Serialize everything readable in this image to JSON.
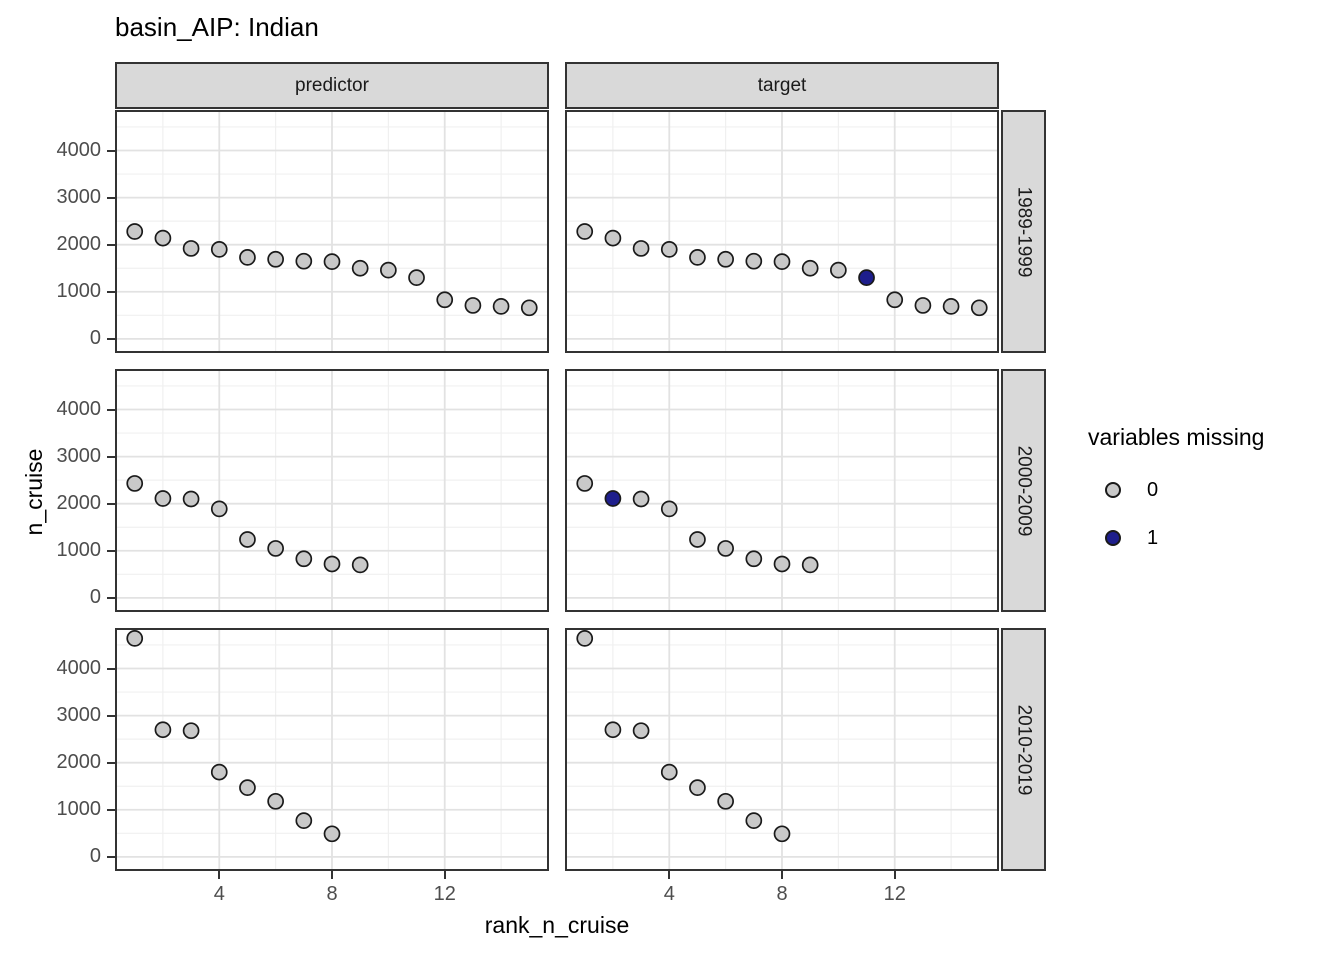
{
  "chart_data": {
    "type": "scatter",
    "title": "basin_AIP: Indian",
    "xlabel": "rank_n_cruise",
    "ylabel": "n_cruise",
    "facet_columns": [
      "predictor",
      "target"
    ],
    "facet_rows": [
      "1989-1999",
      "2000-2009",
      "2010-2019"
    ],
    "x_domain": [
      0.3,
      15.7
    ],
    "y_domain": [
      -300,
      4860
    ],
    "x_ticks": [
      4,
      8,
      12
    ],
    "y_ticks": [
      0,
      1000,
      2000,
      3000,
      4000
    ],
    "x_minor_gridlines": [
      2,
      6,
      10,
      14
    ],
    "y_minor_gridlines": [
      500,
      1500,
      2500,
      3500,
      4500
    ],
    "grid": "on",
    "legend": {
      "title": "variables missing",
      "position": "right",
      "entries": [
        {
          "label": "0",
          "value": 0,
          "color": "#C9C9C9"
        },
        {
          "label": "1",
          "value": 1,
          "color": "#1E1E8C"
        }
      ]
    },
    "style": {
      "point_stroke": "#1A1A1A",
      "point_diameter": 15,
      "grid_major_color": "#E2E2E2",
      "grid_minor_color": "#F0F0F0",
      "strip_fill": "#D9D9D9",
      "panel_border": "#333333",
      "axis_text_color": "#4D4D4D"
    },
    "series": [
      {
        "row": "1989-1999",
        "col": "predictor",
        "points": [
          [
            1,
            2280,
            0
          ],
          [
            2,
            2140,
            0
          ],
          [
            3,
            1920,
            0
          ],
          [
            4,
            1900,
            0
          ],
          [
            5,
            1730,
            0
          ],
          [
            6,
            1690,
            0
          ],
          [
            7,
            1650,
            0
          ],
          [
            8,
            1640,
            0
          ],
          [
            9,
            1500,
            0
          ],
          [
            10,
            1460,
            0
          ],
          [
            11,
            1300,
            0
          ],
          [
            12,
            830,
            0
          ],
          [
            13,
            710,
            0
          ],
          [
            14,
            690,
            0
          ],
          [
            15,
            660,
            0
          ]
        ]
      },
      {
        "row": "1989-1999",
        "col": "target",
        "points": [
          [
            1,
            2280,
            0
          ],
          [
            2,
            2140,
            0
          ],
          [
            3,
            1920,
            0
          ],
          [
            4,
            1900,
            0
          ],
          [
            5,
            1730,
            0
          ],
          [
            6,
            1690,
            0
          ],
          [
            7,
            1650,
            0
          ],
          [
            8,
            1640,
            0
          ],
          [
            9,
            1500,
            0
          ],
          [
            10,
            1460,
            0
          ],
          [
            11,
            1300,
            1
          ],
          [
            12,
            830,
            0
          ],
          [
            13,
            710,
            0
          ],
          [
            14,
            690,
            0
          ],
          [
            15,
            660,
            0
          ]
        ]
      },
      {
        "row": "2000-2009",
        "col": "predictor",
        "points": [
          [
            1,
            2430,
            0
          ],
          [
            2,
            2110,
            0
          ],
          [
            3,
            2100,
            0
          ],
          [
            4,
            1890,
            0
          ],
          [
            5,
            1240,
            0
          ],
          [
            6,
            1050,
            0
          ],
          [
            7,
            830,
            0
          ],
          [
            8,
            720,
            0
          ],
          [
            9,
            700,
            0
          ]
        ]
      },
      {
        "row": "2000-2009",
        "col": "target",
        "points": [
          [
            1,
            2430,
            0
          ],
          [
            2,
            2110,
            1
          ],
          [
            3,
            2100,
            0
          ],
          [
            4,
            1890,
            0
          ],
          [
            5,
            1240,
            0
          ],
          [
            6,
            1050,
            0
          ],
          [
            7,
            830,
            0
          ],
          [
            8,
            720,
            0
          ],
          [
            9,
            700,
            0
          ]
        ]
      },
      {
        "row": "2010-2019",
        "col": "predictor",
        "points": [
          [
            1,
            4640,
            0
          ],
          [
            2,
            2700,
            0
          ],
          [
            3,
            2680,
            0
          ],
          [
            4,
            1800,
            0
          ],
          [
            5,
            1470,
            0
          ],
          [
            6,
            1180,
            0
          ],
          [
            7,
            770,
            0
          ],
          [
            8,
            490,
            0
          ]
        ]
      },
      {
        "row": "2010-2019",
        "col": "target",
        "points": [
          [
            1,
            4640,
            0
          ],
          [
            2,
            2700,
            0
          ],
          [
            3,
            2680,
            0
          ],
          [
            4,
            1800,
            0
          ],
          [
            5,
            1470,
            0
          ],
          [
            6,
            1180,
            0
          ],
          [
            7,
            770,
            0
          ],
          [
            8,
            490,
            0
          ]
        ]
      }
    ]
  }
}
